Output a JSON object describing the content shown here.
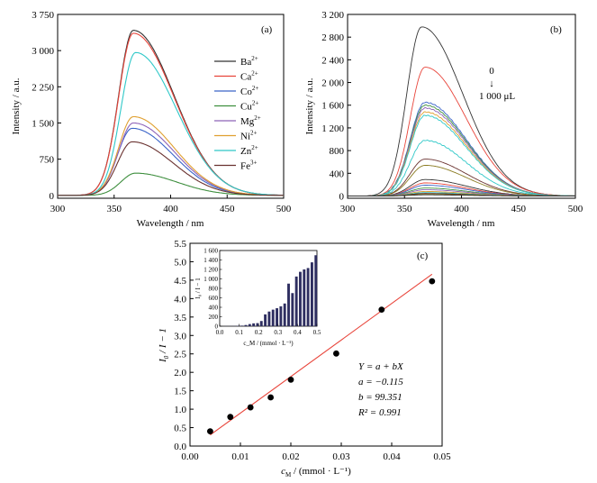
{
  "chart_data": [
    {
      "type": "line",
      "panel_label": "(a)",
      "xlabel": "Wavelength / nm",
      "ylabel": "Intensity / a.u.",
      "xlim": [
        300,
        500
      ],
      "ylim": [
        -60,
        3750
      ],
      "xticks": [
        "300",
        "350",
        "400",
        "450",
        "500"
      ],
      "yticks": [
        "0",
        "750",
        "1 500",
        "2 250",
        "3 000",
        "3 750"
      ],
      "ytick_values": [
        0,
        750,
        1500,
        2250,
        3000,
        3750
      ],
      "legend_position": "right",
      "series": [
        {
          "base": "Ba",
          "charge": "2+",
          "color": "#333333",
          "peak_x": 367,
          "peak_y": 3420
        },
        {
          "base": "Ca",
          "charge": "2+",
          "color": "#e8443a",
          "peak_x": 367,
          "peak_y": 3360
        },
        {
          "base": "Co",
          "charge": "2+",
          "color": "#3a64c8",
          "peak_x": 366,
          "peak_y": 1390
        },
        {
          "base": "Cu",
          "charge": "2+",
          "color": "#3f8f3f",
          "peak_x": 369,
          "peak_y": 460
        },
        {
          "base": "Mg",
          "charge": "2+",
          "color": "#8e63b8",
          "peak_x": 367,
          "peak_y": 1500
        },
        {
          "base": "Ni",
          "charge": "2+",
          "color": "#e0a030",
          "peak_x": 367,
          "peak_y": 1630
        },
        {
          "base": "Zn",
          "charge": "2+",
          "color": "#2fc8c8",
          "peak_x": 369,
          "peak_y": 2960
        },
        {
          "base": "Fe",
          "charge": "3+",
          "color": "#6a3230",
          "peak_x": 366,
          "peak_y": 1110
        }
      ]
    },
    {
      "type": "line",
      "panel_label": "(b)",
      "xlabel": "Wavelength / nm",
      "ylabel": "Intensity / a.u.",
      "xlim": [
        300,
        500
      ],
      "ylim": [
        -40,
        3200
      ],
      "xticks": [
        "300",
        "350",
        "400",
        "450",
        "500"
      ],
      "yticks": [
        "0",
        "400",
        "800",
        "1 200",
        "1 600",
        "2 000",
        "2 400",
        "2 800",
        "3 200"
      ],
      "ytick_values": [
        0,
        400,
        800,
        1200,
        1600,
        2000,
        2400,
        2800,
        3200
      ],
      "annotation": {
        "top": "0",
        "arrow": "↓",
        "bottom": "1 000 μL"
      },
      "series_peaks": [
        2980,
        2270,
        1650,
        1600,
        1550,
        1480,
        1420,
        980,
        650,
        540,
        290,
        230,
        190,
        140,
        110,
        80,
        60,
        45,
        30,
        20
      ],
      "series_colors": [
        "#333333",
        "#e8443a",
        "#3a64c8",
        "#3f8f3f",
        "#8e63b8",
        "#e0a030",
        "#2fc8c8",
        "#2fc8c8",
        "#6a3230",
        "#8a7a20",
        "#333333",
        "#e8443a",
        "#3a64c8",
        "#3f8f3f",
        "#8e63b8",
        "#e0a030",
        "#2fc8c8",
        "#6a3230",
        "#8a7a20",
        "#333333"
      ]
    },
    {
      "type": "scatter",
      "panel_label": "(c)",
      "xlabel_main": "c",
      "xlabel_sub": "M",
      "xlabel_rest": " / (mmol · L⁻¹)",
      "ylabel_main": "I",
      "ylabel_sub": "0",
      "ylabel_rest": " / I − 1",
      "xlim": [
        0.0,
        0.05
      ],
      "ylim": [
        0.0,
        5.5
      ],
      "xticks": [
        "0.00",
        "0.01",
        "0.02",
        "0.03",
        "0.04",
        "0.05"
      ],
      "xtick_values": [
        0.0,
        0.01,
        0.02,
        0.03,
        0.04,
        0.05
      ],
      "yticks": [
        "0.0",
        "0.5",
        "1.0",
        "1.5",
        "2.0",
        "2.5",
        "3.0",
        "3.5",
        "4.0",
        "4.5",
        "5.0",
        "5.5"
      ],
      "ytick_values": [
        0.0,
        0.5,
        1.0,
        1.5,
        2.0,
        2.5,
        3.0,
        3.5,
        4.0,
        4.5,
        5.0,
        5.5
      ],
      "points": [
        {
          "x": 0.004,
          "y": 0.4
        },
        {
          "x": 0.008,
          "y": 0.79
        },
        {
          "x": 0.012,
          "y": 1.05
        },
        {
          "x": 0.016,
          "y": 1.32
        },
        {
          "x": 0.02,
          "y": 1.8
        },
        {
          "x": 0.029,
          "y": 2.51
        },
        {
          "x": 0.038,
          "y": 3.7
        },
        {
          "x": 0.048,
          "y": 4.47
        }
      ],
      "fit_line": {
        "x": [
          0.004,
          0.048
        ],
        "y": [
          0.3,
          4.66
        ],
        "color": "#e8443a"
      },
      "fit_text": [
        "Y = a + bX",
        "a = −0.115",
        "b = 99.351",
        "R² = 0.991"
      ],
      "inset": {
        "type": "bar",
        "xlim": [
          0.0,
          0.5
        ],
        "ylim": [
          0,
          1600
        ],
        "xticks": [
          "0.0",
          "0.1",
          "0.2",
          "0.3",
          "0.4",
          "0.5"
        ],
        "xtick_values": [
          0.0,
          0.1,
          0.2,
          0.3,
          0.4,
          0.5
        ],
        "yticks": [
          "0",
          "200",
          "400",
          "600",
          "800",
          "1 000",
          "1 200",
          "1 400",
          "1 600"
        ],
        "ytick_values": [
          0,
          200,
          400,
          600,
          800,
          1000,
          1200,
          1400,
          1600
        ],
        "ylabel": "I₀ / I − 1",
        "xlabel": "c_M / (mmol · L⁻¹)",
        "bar_color": "#2e2e60",
        "bars": [
          {
            "x": 0.04,
            "y": 2
          },
          {
            "x": 0.06,
            "y": 3
          },
          {
            "x": 0.08,
            "y": 5
          },
          {
            "x": 0.1,
            "y": 8
          },
          {
            "x": 0.12,
            "y": 12
          },
          {
            "x": 0.14,
            "y": 25
          },
          {
            "x": 0.16,
            "y": 45
          },
          {
            "x": 0.18,
            "y": 60
          },
          {
            "x": 0.2,
            "y": 65
          },
          {
            "x": 0.22,
            "y": 110
          },
          {
            "x": 0.24,
            "y": 250
          },
          {
            "x": 0.26,
            "y": 310
          },
          {
            "x": 0.28,
            "y": 350
          },
          {
            "x": 0.3,
            "y": 380
          },
          {
            "x": 0.32,
            "y": 420
          },
          {
            "x": 0.34,
            "y": 480
          },
          {
            "x": 0.36,
            "y": 900
          },
          {
            "x": 0.38,
            "y": 700
          },
          {
            "x": 0.4,
            "y": 1050
          },
          {
            "x": 0.42,
            "y": 1150
          },
          {
            "x": 0.44,
            "y": 1200
          },
          {
            "x": 0.46,
            "y": 1230
          },
          {
            "x": 0.48,
            "y": 1350
          },
          {
            "x": 0.5,
            "y": 1500
          }
        ]
      }
    }
  ]
}
